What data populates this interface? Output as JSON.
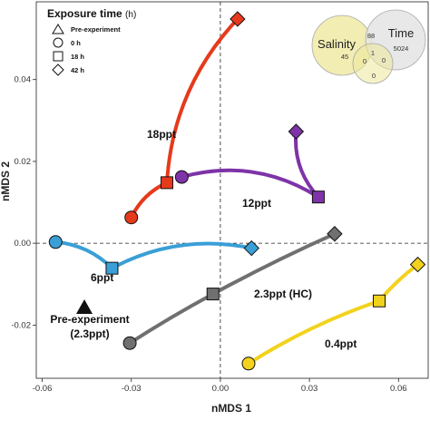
{
  "chart_data": {
    "type": "scatter",
    "xlabel": "nMDS 1",
    "ylabel": "nMDS 2",
    "xlim": [
      -0.062,
      0.07
    ],
    "ylim": [
      -0.033,
      0.059
    ],
    "x_ticks": [
      -0.06,
      -0.03,
      0.0,
      0.03,
      0.06
    ],
    "x_tick_labels": [
      "-0.06",
      "-0.03",
      "0.00",
      "0.03",
      "0.06"
    ],
    "y_ticks": [
      -0.02,
      0.0,
      0.02,
      0.04
    ],
    "y_tick_labels": [
      "-0.02",
      "0.00",
      "0.02",
      "0.04"
    ],
    "reference_lines": {
      "x": 0.0,
      "y": 0.0,
      "style": "dashed"
    },
    "series": [
      {
        "name": "18ppt",
        "color": "#e53a1c",
        "points": [
          [
            -0.03,
            0.0063
          ],
          [
            -0.018,
            0.0148
          ],
          [
            0.0058,
            0.0548
          ]
        ]
      },
      {
        "name": "12ppt",
        "color": "#7e33a8",
        "points": [
          [
            -0.013,
            0.0162
          ],
          [
            0.033,
            0.0113
          ],
          [
            0.0255,
            0.0273
          ]
        ]
      },
      {
        "name": "6ppt",
        "color": "#3a9fd6",
        "points": [
          [
            -0.0555,
            0.0003
          ],
          [
            -0.0365,
            -0.0061
          ],
          [
            0.0105,
            -0.0012
          ]
        ]
      },
      {
        "name": "2.3ppt (HC)",
        "color": "#707070",
        "points": [
          [
            -0.0305,
            -0.0244
          ],
          [
            -0.0025,
            -0.0124
          ],
          [
            0.0385,
            0.0023
          ]
        ]
      },
      {
        "name": "0.4ppt",
        "color": "#f2d21c",
        "points": [
          [
            0.0095,
            -0.0294
          ],
          [
            0.0535,
            -0.0141
          ],
          [
            0.0665,
            -0.0052
          ]
        ]
      }
    ],
    "pre_experiment": {
      "label_line1": "Pre-experiment",
      "label_line2": "(2.3ppt)",
      "x": -0.0465,
      "y": -0.0158
    },
    "legend": {
      "title": "Exposure time",
      "title_unit": "(h)",
      "placement": "top-left",
      "items": [
        "Pre-experiment",
        "0 h",
        "18 h",
        "42 h"
      ]
    },
    "venn": {
      "left_label": "Salinity",
      "right_label": "Time",
      "left_only": "45",
      "right_only": "5024",
      "overlap_top": "88",
      "center": "1",
      "bottom_left": "0",
      "bottom_right": "0",
      "bottom": "0"
    }
  }
}
